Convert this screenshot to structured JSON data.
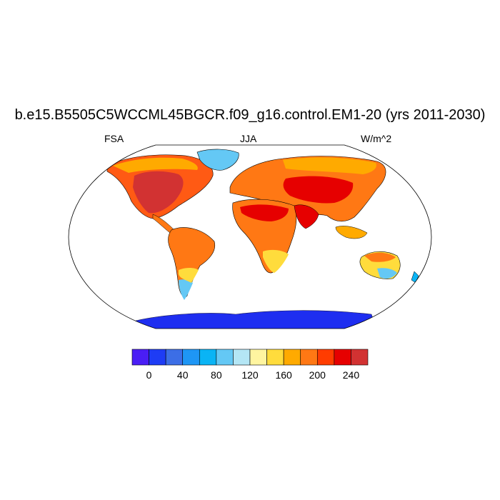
{
  "title": "b.e15.B5505C5WCCML45BGCR.f09_g16.control.EM1-20 (yrs 2011-2030)",
  "left_string": "FSA",
  "center_string": "JJA",
  "right_string": "W/m^2",
  "colorbar": {
    "colors": [
      "#4a1ef5",
      "#1e3cf5",
      "#3c6ee6",
      "#1e96f5",
      "#0ab4f5",
      "#64c8f5",
      "#b4e6f5",
      "#fff5a0",
      "#ffdc3c",
      "#ffaa00",
      "#ff7814",
      "#ff3c00",
      "#e60000",
      "#d23232"
    ],
    "labels": [
      "0",
      "40",
      "80",
      "120",
      "160",
      "200",
      "240"
    ]
  }
}
